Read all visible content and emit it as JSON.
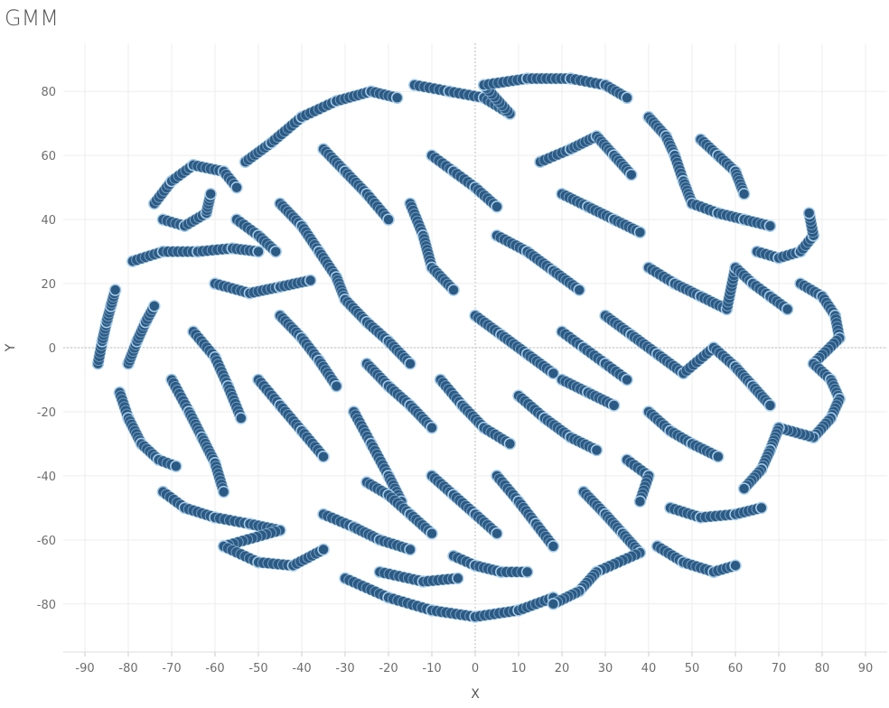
{
  "chart_data": {
    "type": "scatter",
    "title": "GMM",
    "xlabel": "X",
    "ylabel": "Y",
    "xlim": [
      -95,
      95
    ],
    "ylim": [
      -95,
      95
    ],
    "x_ticks": [
      -90,
      -80,
      -70,
      -60,
      -50,
      -40,
      -30,
      -20,
      -10,
      0,
      10,
      20,
      30,
      40,
      50,
      60,
      70,
      80,
      90
    ],
    "y_ticks": [
      -80,
      -60,
      -40,
      -20,
      0,
      20,
      40,
      60,
      80
    ],
    "grid": true,
    "zero_lines": true,
    "marker": "circle",
    "colors": {
      "fill": "#2b5a85",
      "ring": "#a9cde8",
      "grid": "#eeeeee",
      "zero": "#bbbbbb",
      "text": "#6d6d6d"
    },
    "series": [
      {
        "points": [
          [
            -87,
            -5
          ],
          [
            -86,
            2
          ],
          [
            -85,
            8
          ],
          [
            -84,
            13
          ],
          [
            -83,
            18
          ],
          [
            -82,
            -14
          ],
          [
            -80,
            -22
          ],
          [
            -77,
            -30
          ],
          [
            -73,
            -35
          ],
          [
            -69,
            -37
          ],
          [
            -80,
            -5
          ],
          [
            -78,
            2
          ],
          [
            -76,
            8
          ],
          [
            -74,
            13
          ],
          [
            -79,
            27
          ],
          [
            -72,
            30
          ],
          [
            -64,
            30
          ],
          [
            -56,
            31
          ],
          [
            -50,
            30
          ],
          [
            -74,
            45
          ],
          [
            -70,
            52
          ],
          [
            -65,
            57
          ],
          [
            -58,
            55
          ],
          [
            -55,
            50
          ],
          [
            -72,
            40
          ],
          [
            -67,
            38
          ],
          [
            -62,
            42
          ],
          [
            -61,
            48
          ],
          [
            -60,
            20
          ],
          [
            -52,
            17
          ],
          [
            -45,
            19
          ],
          [
            -38,
            21
          ],
          [
            -65,
            5
          ],
          [
            -60,
            -3
          ],
          [
            -57,
            -12
          ],
          [
            -54,
            -22
          ],
          [
            -70,
            -10
          ],
          [
            -66,
            -20
          ],
          [
            -63,
            -28
          ],
          [
            -60,
            -36
          ],
          [
            -58,
            -45
          ],
          [
            -72,
            -45
          ],
          [
            -67,
            -50
          ],
          [
            -60,
            -53
          ],
          [
            -52,
            -55
          ],
          [
            -45,
            -57
          ],
          [
            -58,
            -62
          ],
          [
            -50,
            -67
          ],
          [
            -42,
            -68
          ],
          [
            -35,
            -63
          ],
          [
            -53,
            58
          ],
          [
            -47,
            64
          ],
          [
            -40,
            72
          ],
          [
            -32,
            77
          ],
          [
            -24,
            80
          ],
          [
            -18,
            78
          ],
          [
            -35,
            62
          ],
          [
            -30,
            55
          ],
          [
            -25,
            48
          ],
          [
            -20,
            40
          ],
          [
            -45,
            45
          ],
          [
            -40,
            38
          ],
          [
            -36,
            30
          ],
          [
            -32,
            22
          ],
          [
            -30,
            15
          ],
          [
            -25,
            8
          ],
          [
            -20,
            2
          ],
          [
            -15,
            -5
          ],
          [
            -45,
            10
          ],
          [
            -40,
            3
          ],
          [
            -36,
            -4
          ],
          [
            -32,
            -12
          ],
          [
            -50,
            -10
          ],
          [
            -45,
            -18
          ],
          [
            -40,
            -26
          ],
          [
            -35,
            -34
          ],
          [
            -28,
            -20
          ],
          [
            -24,
            -30
          ],
          [
            -20,
            -40
          ],
          [
            -17,
            -48
          ],
          [
            -35,
            -52
          ],
          [
            -28,
            -56
          ],
          [
            -22,
            -60
          ],
          [
            -15,
            -63
          ],
          [
            -30,
            -72
          ],
          [
            -20,
            -78
          ],
          [
            -10,
            -82
          ],
          [
            0,
            -84
          ],
          [
            10,
            -82
          ],
          [
            18,
            -78
          ],
          [
            -22,
            -70
          ],
          [
            -12,
            -73
          ],
          [
            -4,
            -72
          ],
          [
            -14,
            82
          ],
          [
            -6,
            80
          ],
          [
            2,
            78
          ],
          [
            8,
            73
          ],
          [
            2,
            82
          ],
          [
            12,
            84
          ],
          [
            22,
            84
          ],
          [
            30,
            82
          ],
          [
            35,
            78
          ],
          [
            -10,
            60
          ],
          [
            -5,
            55
          ],
          [
            0,
            50
          ],
          [
            5,
            44
          ],
          [
            -15,
            45
          ],
          [
            -12,
            35
          ],
          [
            -10,
            25
          ],
          [
            -5,
            18
          ],
          [
            5,
            35
          ],
          [
            12,
            30
          ],
          [
            18,
            24
          ],
          [
            24,
            18
          ],
          [
            0,
            10
          ],
          [
            6,
            4
          ],
          [
            12,
            -2
          ],
          [
            18,
            -8
          ],
          [
            -8,
            -10
          ],
          [
            -3,
            -18
          ],
          [
            2,
            -25
          ],
          [
            8,
            -30
          ],
          [
            10,
            -15
          ],
          [
            16,
            -22
          ],
          [
            22,
            -28
          ],
          [
            28,
            -32
          ],
          [
            5,
            -40
          ],
          [
            10,
            -48
          ],
          [
            14,
            -55
          ],
          [
            18,
            -62
          ],
          [
            25,
            -45
          ],
          [
            30,
            -52
          ],
          [
            34,
            -58
          ],
          [
            38,
            -64
          ],
          [
            28,
            -70
          ],
          [
            24,
            -76
          ],
          [
            18,
            -80
          ],
          [
            15,
            58
          ],
          [
            22,
            62
          ],
          [
            28,
            66
          ],
          [
            32,
            60
          ],
          [
            36,
            54
          ],
          [
            20,
            48
          ],
          [
            26,
            44
          ],
          [
            32,
            40
          ],
          [
            38,
            36
          ],
          [
            40,
            72
          ],
          [
            44,
            66
          ],
          [
            46,
            60
          ],
          [
            48,
            52
          ],
          [
            50,
            45
          ],
          [
            56,
            42
          ],
          [
            62,
            40
          ],
          [
            68,
            38
          ],
          [
            52,
            65
          ],
          [
            56,
            60
          ],
          [
            60,
            55
          ],
          [
            62,
            48
          ],
          [
            65,
            30
          ],
          [
            70,
            28
          ],
          [
            75,
            30
          ],
          [
            78,
            35
          ],
          [
            77,
            42
          ],
          [
            40,
            25
          ],
          [
            46,
            20
          ],
          [
            52,
            16
          ],
          [
            58,
            12
          ],
          [
            60,
            25
          ],
          [
            64,
            20
          ],
          [
            68,
            16
          ],
          [
            72,
            12
          ],
          [
            30,
            10
          ],
          [
            36,
            4
          ],
          [
            42,
            -2
          ],
          [
            48,
            -8
          ],
          [
            55,
            0
          ],
          [
            60,
            -6
          ],
          [
            64,
            -12
          ],
          [
            68,
            -18
          ],
          [
            75,
            20
          ],
          [
            80,
            16
          ],
          [
            83,
            10
          ],
          [
            84,
            3
          ],
          [
            78,
            -5
          ],
          [
            82,
            -10
          ],
          [
            84,
            -16
          ],
          [
            82,
            -22
          ],
          [
            78,
            -28
          ],
          [
            70,
            -25
          ],
          [
            68,
            -32
          ],
          [
            66,
            -38
          ],
          [
            62,
            -44
          ],
          [
            40,
            -20
          ],
          [
            45,
            -26
          ],
          [
            50,
            -30
          ],
          [
            56,
            -34
          ],
          [
            45,
            -50
          ],
          [
            52,
            -53
          ],
          [
            60,
            -52
          ],
          [
            66,
            -50
          ],
          [
            42,
            -62
          ],
          [
            48,
            -67
          ],
          [
            55,
            -70
          ],
          [
            60,
            -68
          ],
          [
            35,
            -35
          ],
          [
            40,
            -40
          ],
          [
            38,
            -48
          ],
          [
            -55,
            40
          ],
          [
            -50,
            35
          ],
          [
            -46,
            30
          ],
          [
            -25,
            -5
          ],
          [
            -20,
            -12
          ],
          [
            -15,
            -18
          ],
          [
            -10,
            -25
          ],
          [
            -10,
            -40
          ],
          [
            -5,
            -46
          ],
          [
            0,
            -52
          ],
          [
            5,
            -58
          ],
          [
            -25,
            -42
          ],
          [
            -20,
            -46
          ],
          [
            -15,
            -52
          ],
          [
            -10,
            -58
          ],
          [
            20,
            5
          ],
          [
            25,
            0
          ],
          [
            30,
            -5
          ],
          [
            35,
            -10
          ],
          [
            20,
            -10
          ],
          [
            26,
            -14
          ],
          [
            32,
            -18
          ],
          [
            -5,
            -65
          ],
          [
            0,
            -68
          ],
          [
            6,
            -70
          ],
          [
            12,
            -70
          ]
        ]
      }
    ]
  }
}
